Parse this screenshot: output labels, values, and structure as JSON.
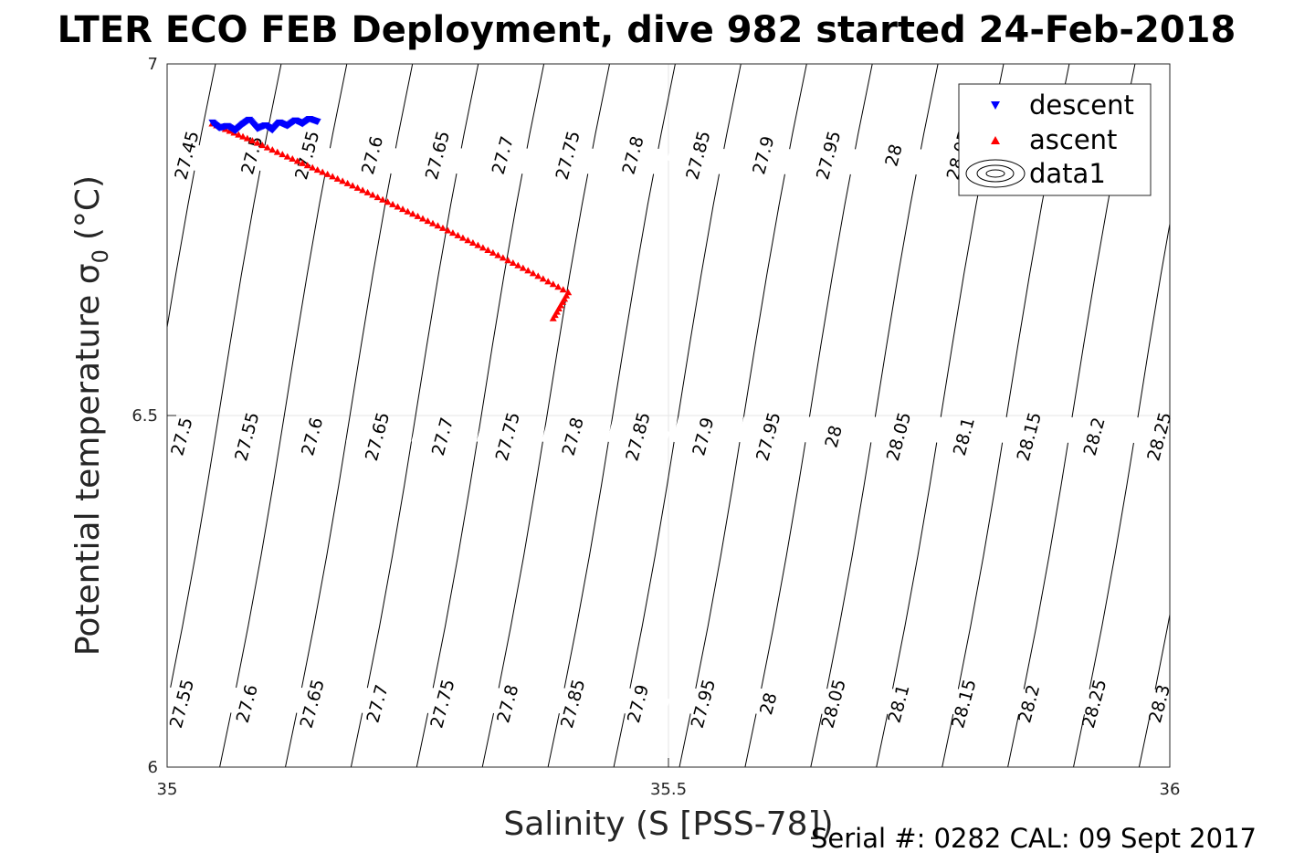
{
  "chart_data": {
    "type": "scatter",
    "title": "LTER ECO FEB Deployment, dive 982 started 24-Feb-2018",
    "xlabel": "Salinity (S [PSS-78])",
    "ylabel": "Potential temperature σ",
    "ylabel_subscript": "0",
    "ylabel_units": "(°C)",
    "xlim": [
      35,
      36
    ],
    "ylim": [
      6,
      7
    ],
    "x_ticks": [
      35,
      35.5,
      36
    ],
    "y_ticks": [
      6,
      6.5,
      7
    ],
    "x_tick_labels": [
      "35",
      "35.5",
      "36"
    ],
    "y_tick_labels": [
      "6",
      "6.5",
      "7"
    ],
    "grid": true,
    "legend_position": "top-right",
    "legend": [
      "descent",
      "ascent",
      "data1"
    ],
    "series": [
      {
        "name": "descent",
        "marker": "triangle-down",
        "color": "#0000ff",
        "points": [
          [
            35.045,
            6.917
          ],
          [
            35.052,
            6.909
          ],
          [
            35.06,
            6.912
          ],
          [
            35.068,
            6.905
          ],
          [
            35.075,
            6.914
          ],
          [
            35.082,
            6.921
          ],
          [
            35.09,
            6.908
          ],
          [
            35.098,
            6.913
          ],
          [
            35.105,
            6.906
          ],
          [
            35.112,
            6.917
          ],
          [
            35.12,
            6.912
          ],
          [
            35.128,
            6.92
          ],
          [
            35.135,
            6.915
          ],
          [
            35.142,
            6.922
          ],
          [
            35.15,
            6.918
          ]
        ]
      },
      {
        "name": "ascent",
        "marker": "triangle-up",
        "color": "#ff0000",
        "points": [
          [
            35.045,
            6.915
          ],
          [
            35.08,
            6.894
          ],
          [
            35.12,
            6.868
          ],
          [
            35.16,
            6.843
          ],
          [
            35.2,
            6.817
          ],
          [
            35.24,
            6.79
          ],
          [
            35.28,
            6.763
          ],
          [
            35.32,
            6.735
          ],
          [
            35.36,
            6.706
          ],
          [
            35.4,
            6.675
          ],
          [
            35.385,
            6.638
          ]
        ]
      }
    ],
    "contour_series": "data1",
    "contour_label_rows": [
      {
        "temp": 6.87,
        "labels": [
          {
            "s": 35.02,
            "text": "27.45"
          },
          {
            "s": 35.085,
            "text": "27.5"
          },
          {
            "s": 35.14,
            "text": "27.55"
          },
          {
            "s": 35.205,
            "text": "27.6"
          },
          {
            "s": 35.27,
            "text": "27.65"
          },
          {
            "s": 35.335,
            "text": "27.7"
          },
          {
            "s": 35.4,
            "text": "27.75"
          },
          {
            "s": 35.465,
            "text": "27.8"
          },
          {
            "s": 35.53,
            "text": "27.85"
          },
          {
            "s": 35.595,
            "text": "27.9"
          },
          {
            "s": 35.66,
            "text": "27.95"
          },
          {
            "s": 35.725,
            "text": "28"
          },
          {
            "s": 35.79,
            "text": "28.05"
          }
        ]
      },
      {
        "temp": 6.47,
        "labels": [
          {
            "s": 35.015,
            "text": "27.5"
          },
          {
            "s": 35.08,
            "text": "27.55"
          },
          {
            "s": 35.145,
            "text": "27.6"
          },
          {
            "s": 35.21,
            "text": "27.65"
          },
          {
            "s": 35.275,
            "text": "27.7"
          },
          {
            "s": 35.34,
            "text": "27.75"
          },
          {
            "s": 35.405,
            "text": "27.8"
          },
          {
            "s": 35.47,
            "text": "27.85"
          },
          {
            "s": 35.535,
            "text": "27.9"
          },
          {
            "s": 35.6,
            "text": "27.95"
          },
          {
            "s": 35.665,
            "text": "28"
          },
          {
            "s": 35.73,
            "text": "28.05"
          },
          {
            "s": 35.795,
            "text": "28.1"
          },
          {
            "s": 35.86,
            "text": "28.15"
          },
          {
            "s": 35.925,
            "text": "28.2"
          },
          {
            "s": 35.99,
            "text": "28.25"
          }
        ]
      },
      {
        "temp": 6.09,
        "labels": [
          {
            "s": 35.015,
            "text": "27.55"
          },
          {
            "s": 35.08,
            "text": "27.6"
          },
          {
            "s": 35.145,
            "text": "27.65"
          },
          {
            "s": 35.21,
            "text": "27.7"
          },
          {
            "s": 35.275,
            "text": "27.75"
          },
          {
            "s": 35.34,
            "text": "27.8"
          },
          {
            "s": 35.405,
            "text": "27.85"
          },
          {
            "s": 35.47,
            "text": "27.9"
          },
          {
            "s": 35.535,
            "text": "27.95"
          },
          {
            "s": 35.6,
            "text": "28"
          },
          {
            "s": 35.665,
            "text": "28.05"
          },
          {
            "s": 35.73,
            "text": "28.1"
          },
          {
            "s": 35.795,
            "text": "28.15"
          },
          {
            "s": 35.86,
            "text": "28.2"
          },
          {
            "s": 35.925,
            "text": "28.25"
          },
          {
            "s": 35.99,
            "text": "28.3"
          }
        ]
      }
    ]
  },
  "footer": "Serial #: 0282  CAL: 09 Sept 2017",
  "colors": {
    "descent": "#0000ff",
    "ascent": "#ff0000",
    "contour": "#000000",
    "grid": "#e6e6e6",
    "axis": "#262626"
  }
}
